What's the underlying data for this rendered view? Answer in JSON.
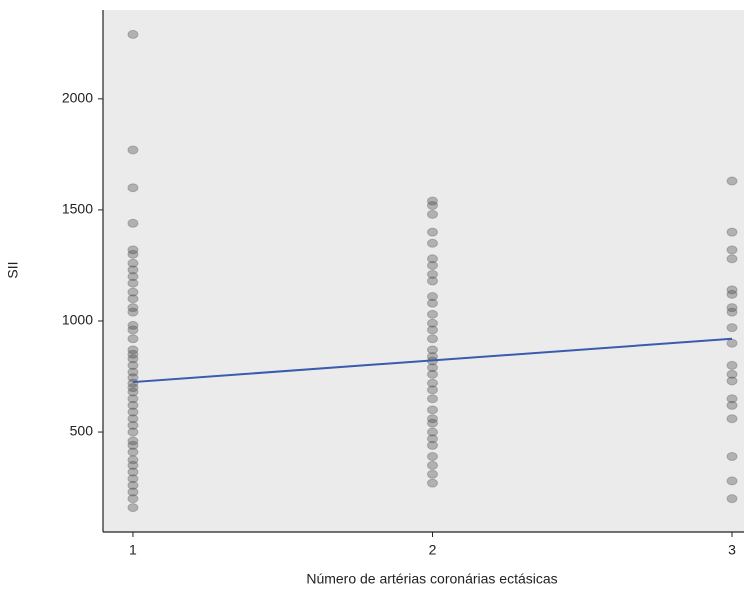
{
  "chart_data": {
    "type": "scatter",
    "xlabel": "Número de artérias coronárias ectásicas",
    "ylabel": "SII",
    "xlim": [
      0.9,
      3.04
    ],
    "ylim": [
      50,
      2400
    ],
    "xticks": [
      1,
      2,
      3
    ],
    "yticks": [
      500,
      1000,
      1500,
      2000
    ],
    "point_color": "#444444",
    "groups": [
      {
        "x": 1,
        "values": [
          2290,
          1770,
          1600,
          1440,
          1320,
          1300,
          1260,
          1230,
          1200,
          1170,
          1130,
          1100,
          1060,
          1040,
          980,
          960,
          920,
          870,
          850,
          830,
          800,
          770,
          745,
          720,
          700,
          680,
          650,
          620,
          590,
          560,
          530,
          500,
          460,
          440,
          410,
          375,
          350,
          320,
          290,
          260,
          230,
          200,
          160
        ]
      },
      {
        "x": 2,
        "values": [
          1540,
          1520,
          1480,
          1400,
          1350,
          1280,
          1250,
          1210,
          1180,
          1110,
          1080,
          1030,
          990,
          960,
          920,
          870,
          840,
          820,
          790,
          760,
          720,
          690,
          650,
          600,
          560,
          540,
          500,
          470,
          440,
          390,
          350,
          310,
          270
        ]
      },
      {
        "x": 3,
        "values": [
          1630,
          1400,
          1320,
          1280,
          1140,
          1120,
          1060,
          1040,
          970,
          900,
          800,
          760,
          730,
          650,
          620,
          560,
          390,
          280,
          200
        ]
      }
    ],
    "fit": {
      "x": [
        1,
        3
      ],
      "values": [
        725,
        920
      ],
      "color": "#3a5bb0"
    }
  }
}
